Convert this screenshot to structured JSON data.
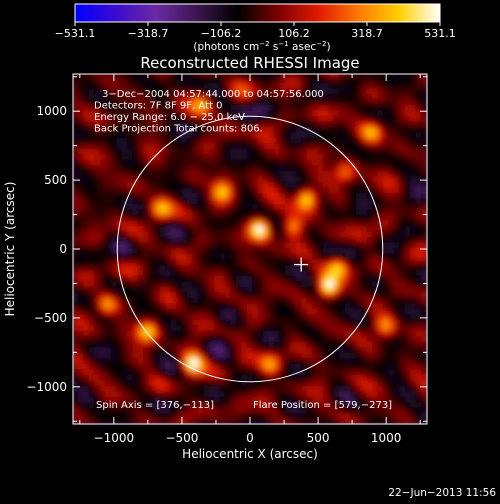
{
  "chart_data": {
    "type": "heatmap",
    "title": "Reconstructed RHESSI Image",
    "xlabel": "Heliocentric X (arcsec)",
    "ylabel": "Heliocentric Y (arcsec)",
    "xlim": [
      -1300,
      1300
    ],
    "ylim": [
      -1270,
      1270
    ],
    "xticks": [
      -1000,
      -500,
      0,
      500,
      1000
    ],
    "yticks": [
      -1000,
      -500,
      0,
      500,
      1000
    ],
    "xtick_labels": [
      "−1000",
      "−500",
      "0",
      "500",
      "1000"
    ],
    "ytick_labels": [
      "−1000",
      "−500",
      "0",
      "500",
      "1000"
    ],
    "colorbar": {
      "min": -531.1,
      "max": 531.1,
      "tick_labels": [
        "−531.1",
        "−318.7",
        "−106.2",
        "106.2",
        "318.7",
        "531.1"
      ],
      "tick_values": [
        -531.1,
        -318.7,
        -106.2,
        106.2,
        318.7,
        531.1
      ],
      "units_prefix": "(photons cm",
      "units_sup1": "−2",
      "units_mid1": " s",
      "units_sup2": "−1",
      "units_mid2": " asec",
      "units_sup3": "−2",
      "units_suffix": ")",
      "colors": [
        "#0000ff",
        "#3a0bd0",
        "#6a2aa0",
        "#3d1550",
        "#000000",
        "#7a0000",
        "#e01a00",
        "#ff7a00",
        "#ffd000",
        "#ffffff"
      ]
    },
    "annotations": [
      "3−Dec−2004 04:57:44.000 to 04:57:56.000",
      "Detectors: 7F 8F 9F, Att 0",
      "Energy Range: 6.0 − 25.0 keV",
      "Back Projection    Total counts: 806."
    ],
    "spin_axis_label": "Spin Axis = [376,−113]",
    "flare_position_label": "Flare Position = [579,−273]",
    "solar_disk": {
      "center": [
        0,
        0
      ],
      "radius": 975
    },
    "spin_axis_marker": [
      376,
      -113
    ],
    "bright_sources": [
      {
        "x": 579,
        "y": -273,
        "v": 531.1
      },
      {
        "x": 80,
        "y": 150,
        "v": 500
      },
      {
        "x": 420,
        "y": 370,
        "v": 480
      },
      {
        "x": -420,
        "y": -830,
        "v": 470
      },
      {
        "x": -750,
        "y": -600,
        "v": 400
      },
      {
        "x": 320,
        "y": 160,
        "v": 390
      },
      {
        "x": -200,
        "y": 420,
        "v": 380
      },
      {
        "x": 650,
        "y": -120,
        "v": 360
      },
      {
        "x": -650,
        "y": 300,
        "v": 340
      },
      {
        "x": 900,
        "y": 850,
        "v": 330
      },
      {
        "x": -1050,
        "y": -400,
        "v": 330
      },
      {
        "x": 150,
        "y": -850,
        "v": 320
      },
      {
        "x": 1000,
        "y": -560,
        "v": 300
      },
      {
        "x": -350,
        "y": 1050,
        "v": 310
      },
      {
        "x": 700,
        "y": 560,
        "v": 300
      }
    ],
    "footer_date": "22−Jun−2013 11:56"
  }
}
